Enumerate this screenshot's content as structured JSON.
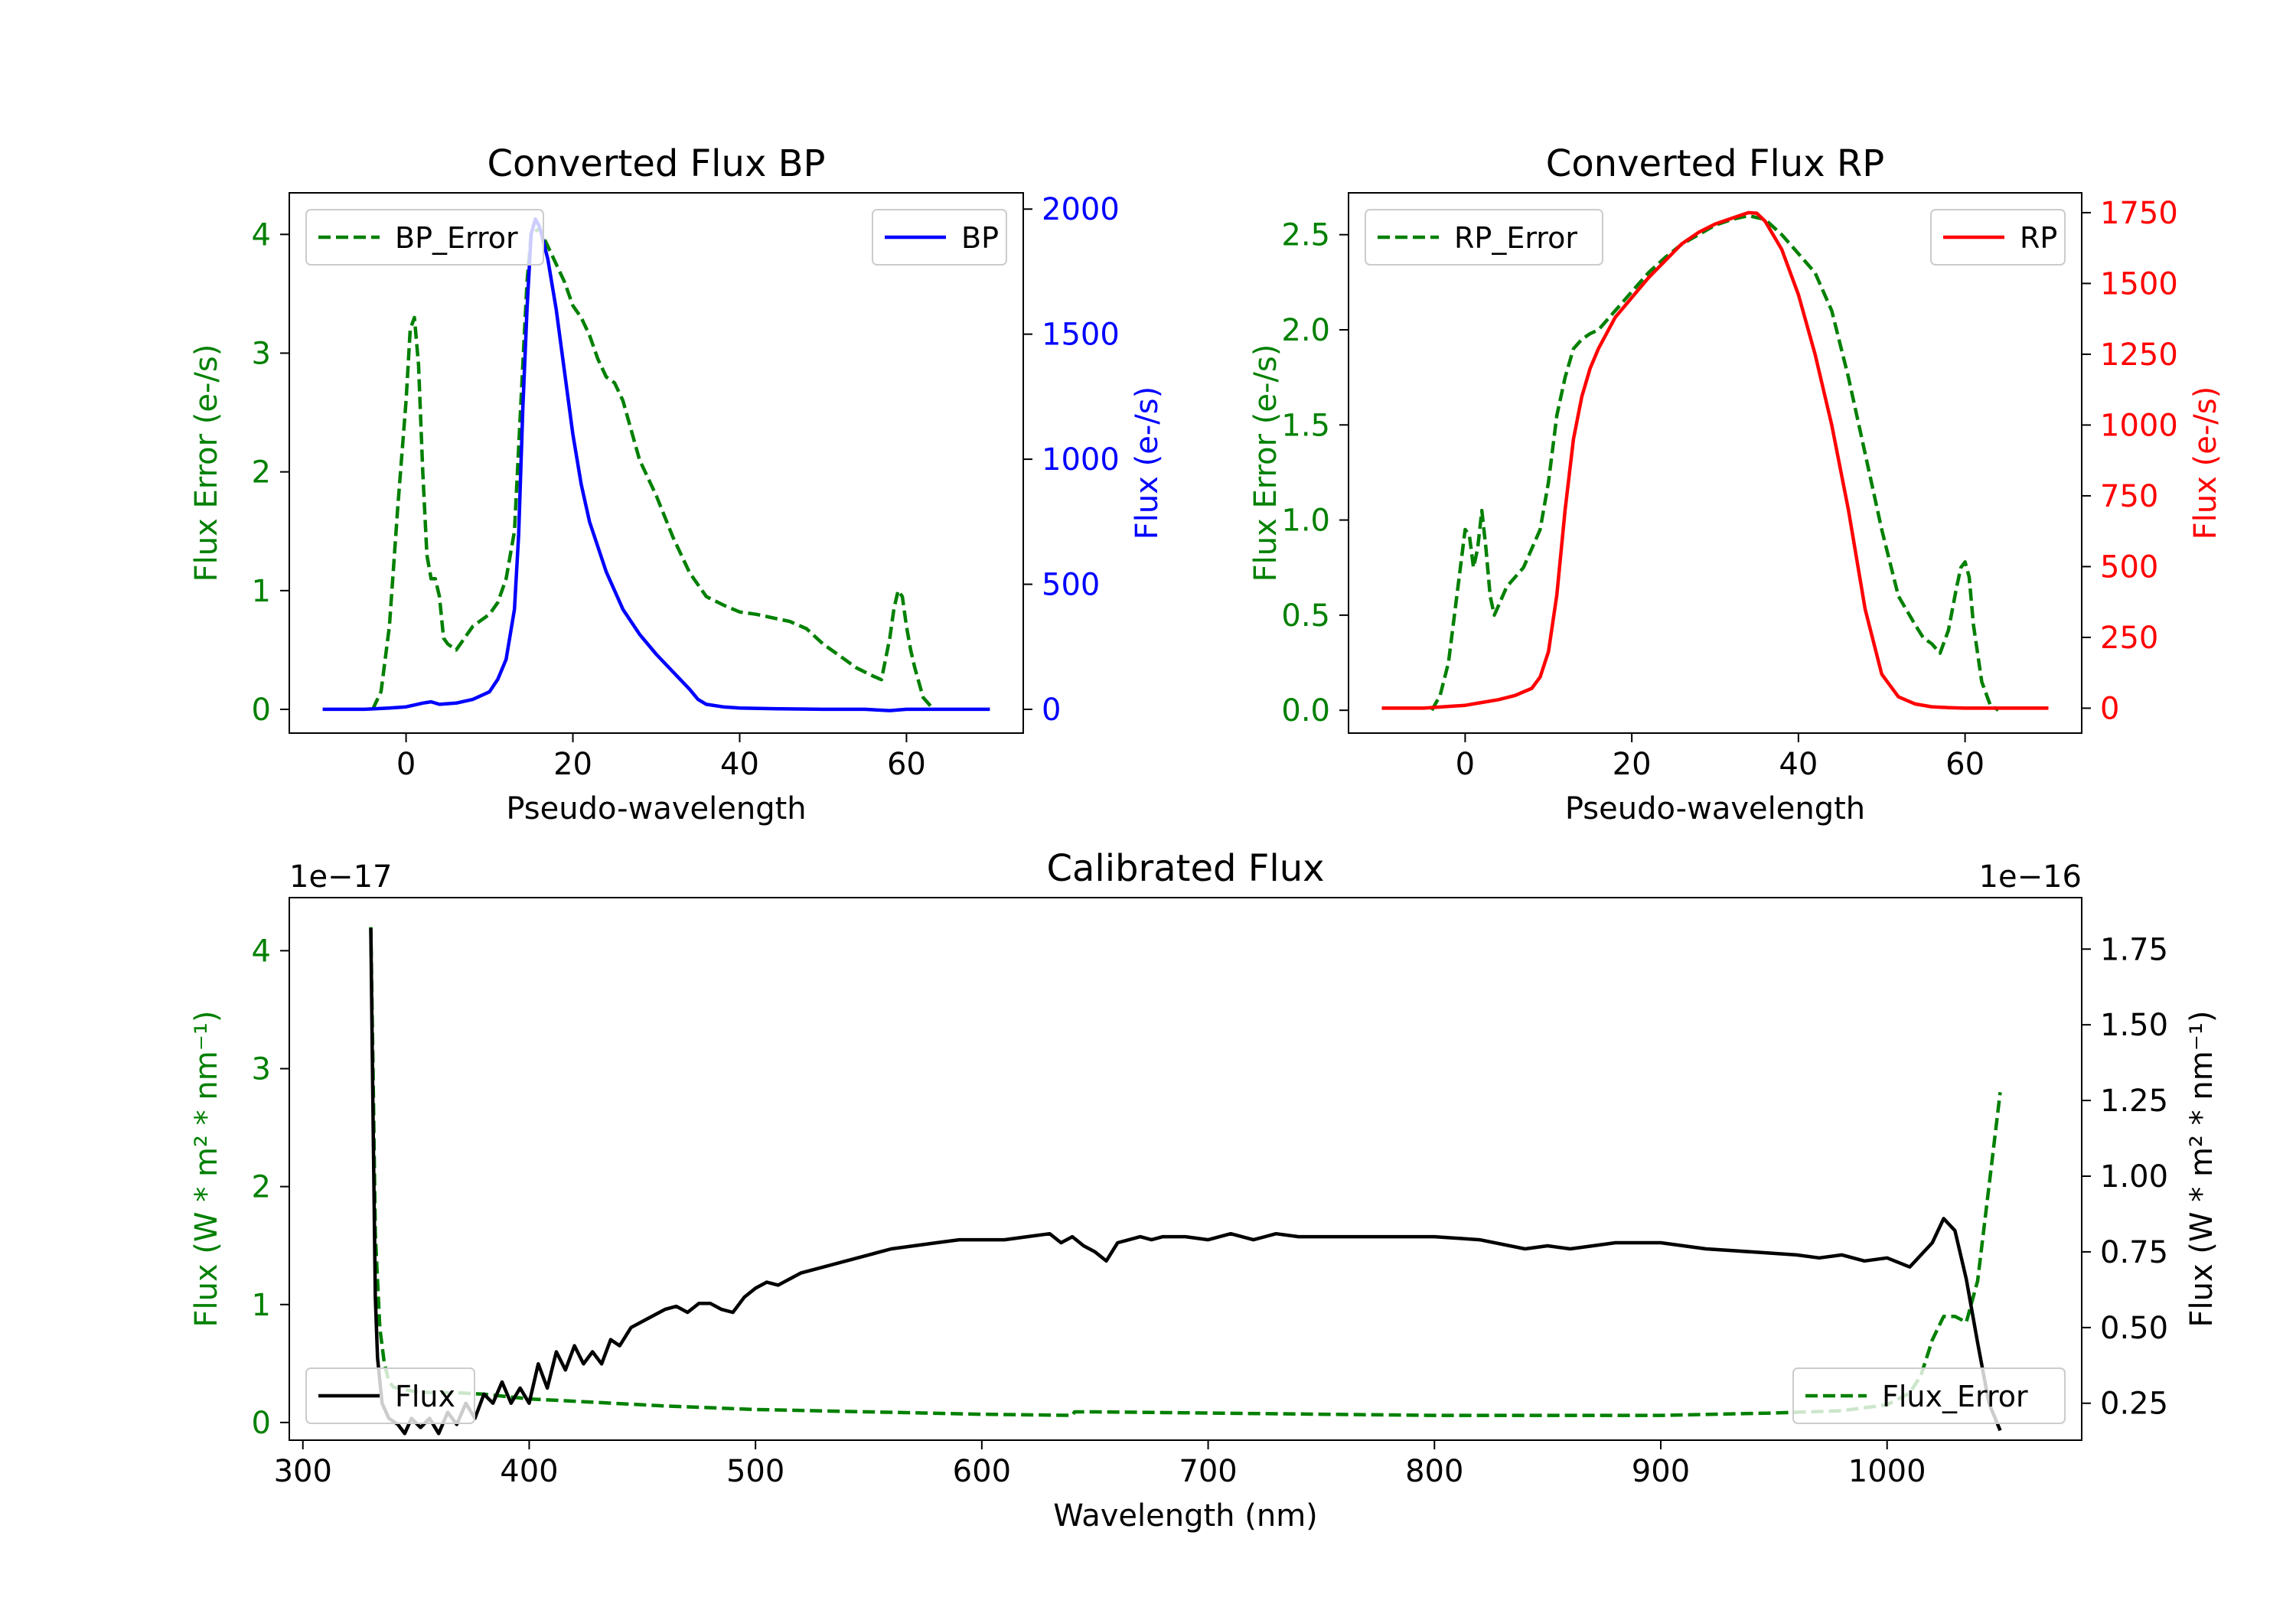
{
  "colors": {
    "green": "#008000",
    "blue": "#0000ff",
    "red": "#ff0000",
    "black": "#000000",
    "axis": "#000000"
  },
  "chart_data": [
    {
      "id": "bp",
      "type": "line",
      "title": "Converted Flux BP",
      "xlabel": "Pseudo-wavelength",
      "ylabel_left": "Flux Error (e-/s)",
      "ylabel_right": "Flux (e-/s)",
      "xlim": [
        -14,
        74
      ],
      "ylim_left": [
        -0.2,
        4.35
      ],
      "ylim_right": [
        -95,
        2065
      ],
      "xticks": [
        0,
        20,
        40,
        60
      ],
      "yticks_left": [
        0,
        1,
        2,
        3,
        4
      ],
      "yticks_right": [
        0,
        500,
        1000,
        1500,
        2000
      ],
      "legend_left": "BP_Error",
      "legend_right": "BP",
      "series": [
        {
          "name": "BP_Error",
          "axis": "left",
          "color": "green",
          "style": "dashed",
          "x": [
            -4,
            -3,
            -2,
            -1,
            0,
            0.5,
            1,
            1.5,
            2,
            2.5,
            3,
            3.5,
            4,
            4.5,
            5,
            6,
            7,
            8,
            9,
            10,
            11,
            12,
            13,
            14,
            14.5,
            15,
            16,
            17,
            18,
            19,
            20,
            21,
            22,
            23,
            24,
            25,
            26,
            27,
            28,
            30,
            32,
            34,
            36,
            38,
            40,
            42,
            44,
            46,
            48,
            50,
            52,
            54,
            56,
            57,
            58,
            58.5,
            59,
            59.5,
            60,
            60.5,
            61,
            62,
            63,
            63.5
          ],
          "y": [
            0,
            0.15,
            0.7,
            1.7,
            2.6,
            3.2,
            3.3,
            2.9,
            2.0,
            1.3,
            1.1,
            1.1,
            0.95,
            0.6,
            0.55,
            0.5,
            0.6,
            0.7,
            0.75,
            0.8,
            0.9,
            1.1,
            1.5,
            2.9,
            3.6,
            4.0,
            4.05,
            3.9,
            3.75,
            3.6,
            3.4,
            3.3,
            3.15,
            2.95,
            2.8,
            2.75,
            2.6,
            2.35,
            2.1,
            1.8,
            1.45,
            1.15,
            0.95,
            0.88,
            0.82,
            0.8,
            0.77,
            0.74,
            0.68,
            0.55,
            0.45,
            0.35,
            0.28,
            0.25,
            0.6,
            0.85,
            1.0,
            0.95,
            0.7,
            0.5,
            0.35,
            0.1,
            0.02,
            0
          ]
        },
        {
          "name": "BP",
          "axis": "right",
          "color": "blue",
          "style": "solid",
          "x": [
            -10,
            -5,
            -2,
            0,
            2,
            3,
            4,
            6,
            8,
            10,
            11,
            12,
            13,
            13.5,
            14,
            14.5,
            15,
            15.5,
            16,
            17,
            18,
            19,
            20,
            21,
            22,
            24,
            26,
            28,
            30,
            32,
            34,
            35,
            36,
            38,
            40,
            45,
            50,
            55,
            58,
            60,
            65,
            70
          ],
          "y": [
            0,
            0,
            5,
            10,
            25,
            30,
            20,
            25,
            40,
            70,
            120,
            200,
            400,
            700,
            1200,
            1600,
            1900,
            1960,
            1930,
            1800,
            1600,
            1350,
            1100,
            900,
            750,
            550,
            400,
            300,
            220,
            150,
            80,
            40,
            20,
            10,
            5,
            2,
            0,
            0,
            -5,
            0,
            0,
            0
          ]
        }
      ]
    },
    {
      "id": "rp",
      "type": "line",
      "title": "Converted Flux RP",
      "xlabel": "Pseudo-wavelength",
      "ylabel_left": "Flux Error (e-/s)",
      "ylabel_right": "Flux (e-/s)",
      "xlim": [
        -14,
        74
      ],
      "ylim_left": [
        -0.12,
        2.72
      ],
      "ylim_right": [
        -88,
        1820
      ],
      "xticks": [
        0,
        20,
        40,
        60
      ],
      "yticks_left": [
        0.0,
        0.5,
        1.0,
        1.5,
        2.0,
        2.5
      ],
      "yticks_right": [
        0,
        250,
        500,
        750,
        1000,
        1250,
        1500,
        1750
      ],
      "legend_left": "RP_Error",
      "legend_right": "RP",
      "series": [
        {
          "name": "RP_Error",
          "axis": "left",
          "color": "green",
          "style": "dashed",
          "x": [
            -4,
            -3,
            -2,
            -1,
            0,
            0.5,
            1,
            1.5,
            2,
            2.5,
            3,
            3.5,
            4,
            5,
            6,
            7,
            8,
            9,
            10,
            11,
            12,
            13,
            14,
            15,
            16,
            18,
            20,
            22,
            24,
            26,
            28,
            30,
            32,
            34,
            36,
            38,
            40,
            42,
            44,
            46,
            48,
            50,
            52,
            54,
            55,
            56,
            57,
            58,
            59,
            59.5,
            60,
            60.5,
            61,
            62,
            63,
            64
          ],
          "y": [
            0,
            0.08,
            0.25,
            0.6,
            0.95,
            0.92,
            0.75,
            0.85,
            1.05,
            0.85,
            0.6,
            0.5,
            0.55,
            0.65,
            0.7,
            0.75,
            0.85,
            0.95,
            1.2,
            1.55,
            1.75,
            1.9,
            1.95,
            1.98,
            2.0,
            2.1,
            2.2,
            2.3,
            2.38,
            2.45,
            2.5,
            2.55,
            2.58,
            2.6,
            2.58,
            2.5,
            2.4,
            2.3,
            2.1,
            1.75,
            1.35,
            0.95,
            0.6,
            0.45,
            0.38,
            0.35,
            0.3,
            0.42,
            0.65,
            0.75,
            0.78,
            0.7,
            0.45,
            0.15,
            0.03,
            0
          ]
        },
        {
          "name": "RP",
          "axis": "right",
          "color": "red",
          "style": "solid",
          "x": [
            -10,
            -5,
            0,
            2,
            4,
            6,
            8,
            9,
            10,
            11,
            12,
            13,
            14,
            15,
            16,
            18,
            20,
            22,
            24,
            26,
            28,
            30,
            32,
            34,
            35,
            36,
            38,
            40,
            42,
            44,
            46,
            48,
            50,
            52,
            54,
            56,
            58,
            60,
            62,
            65,
            70
          ],
          "y": [
            0,
            0,
            10,
            20,
            30,
            45,
            70,
            110,
            200,
            400,
            700,
            950,
            1100,
            1200,
            1270,
            1380,
            1450,
            1520,
            1580,
            1640,
            1680,
            1710,
            1730,
            1750,
            1748,
            1720,
            1620,
            1460,
            1250,
            1000,
            700,
            350,
            120,
            40,
            15,
            5,
            2,
            0,
            0,
            0,
            0
          ]
        }
      ]
    },
    {
      "id": "cal",
      "type": "line",
      "title": "Calibrated Flux",
      "xlabel": "Wavelength (nm)",
      "ylabel_left": "Flux (W * m² * nm⁻¹)",
      "ylabel_right": "Flux (W * m² * nm⁻¹)",
      "offset_left": "1e−17",
      "offset_right": "1e−16",
      "xlim": [
        294,
        1086
      ],
      "ylim_left": [
        -0.15,
        4.45
      ],
      "ylim_right": [
        0.128,
        1.92
      ],
      "xticks": [
        300,
        400,
        500,
        600,
        700,
        800,
        900,
        1000
      ],
      "yticks_left": [
        0,
        1,
        2,
        3,
        4
      ],
      "yticks_right": [
        0.25,
        0.5,
        0.75,
        1.0,
        1.25,
        1.5,
        1.75
      ],
      "legend_left": "Flux",
      "legend_right": "Flux_Error",
      "series": [
        {
          "name": "Flux_Error",
          "axis": "left",
          "color": "green",
          "style": "dashed",
          "x": [
            330,
            331,
            332,
            334,
            336,
            338,
            340,
            345,
            350,
            360,
            370,
            380,
            390,
            400,
            420,
            440,
            460,
            500,
            550,
            600,
            640,
            641,
            650,
            700,
            750,
            800,
            850,
            900,
            950,
            980,
            1000,
            1010,
            1015,
            1020,
            1025,
            1030,
            1035,
            1040,
            1045,
            1050
          ],
          "y": [
            4.2,
            3.0,
            1.6,
            0.8,
            0.5,
            0.35,
            0.3,
            0.28,
            0.26,
            0.25,
            0.25,
            0.24,
            0.22,
            0.2,
            0.18,
            0.16,
            0.14,
            0.11,
            0.09,
            0.07,
            0.06,
            0.09,
            0.09,
            0.08,
            0.07,
            0.06,
            0.06,
            0.06,
            0.08,
            0.1,
            0.15,
            0.25,
            0.4,
            0.7,
            0.9,
            0.9,
            0.85,
            1.2,
            2.0,
            2.8
          ]
        },
        {
          "name": "Flux",
          "axis": "right",
          "color": "black",
          "style": "solid",
          "x": [
            330,
            331,
            332,
            333,
            335,
            338,
            342,
            345,
            348,
            352,
            356,
            360,
            364,
            368,
            372,
            376,
            380,
            384,
            388,
            392,
            396,
            400,
            404,
            408,
            412,
            416,
            420,
            424,
            428,
            432,
            436,
            440,
            445,
            450,
            455,
            460,
            465,
            470,
            475,
            480,
            485,
            490,
            495,
            500,
            505,
            510,
            515,
            520,
            530,
            540,
            550,
            560,
            570,
            580,
            590,
            600,
            610,
            620,
            630,
            635,
            640,
            645,
            650,
            655,
            660,
            665,
            670,
            675,
            680,
            690,
            700,
            710,
            720,
            730,
            740,
            750,
            760,
            780,
            800,
            820,
            840,
            850,
            860,
            870,
            880,
            900,
            920,
            940,
            960,
            970,
            980,
            990,
            1000,
            1010,
            1020,
            1025,
            1030,
            1035,
            1040,
            1045,
            1050
          ],
          "y": [
            1.82,
            1.2,
            0.6,
            0.4,
            0.25,
            0.2,
            0.18,
            0.15,
            0.2,
            0.17,
            0.2,
            0.15,
            0.22,
            0.18,
            0.25,
            0.2,
            0.28,
            0.25,
            0.32,
            0.25,
            0.3,
            0.25,
            0.38,
            0.3,
            0.42,
            0.36,
            0.44,
            0.38,
            0.42,
            0.38,
            0.46,
            0.44,
            0.5,
            0.52,
            0.54,
            0.56,
            0.57,
            0.55,
            0.58,
            0.58,
            0.56,
            0.55,
            0.6,
            0.63,
            0.65,
            0.64,
            0.66,
            0.68,
            0.7,
            0.72,
            0.74,
            0.76,
            0.77,
            0.78,
            0.79,
            0.79,
            0.79,
            0.8,
            0.81,
            0.78,
            0.8,
            0.77,
            0.75,
            0.72,
            0.78,
            0.79,
            0.8,
            0.79,
            0.8,
            0.8,
            0.79,
            0.81,
            0.79,
            0.81,
            0.8,
            0.8,
            0.8,
            0.8,
            0.8,
            0.79,
            0.76,
            0.77,
            0.76,
            0.77,
            0.78,
            0.78,
            0.76,
            0.75,
            0.74,
            0.73,
            0.74,
            0.72,
            0.73,
            0.7,
            0.78,
            0.86,
            0.82,
            0.66,
            0.45,
            0.25,
            0.16
          ]
        }
      ]
    }
  ]
}
